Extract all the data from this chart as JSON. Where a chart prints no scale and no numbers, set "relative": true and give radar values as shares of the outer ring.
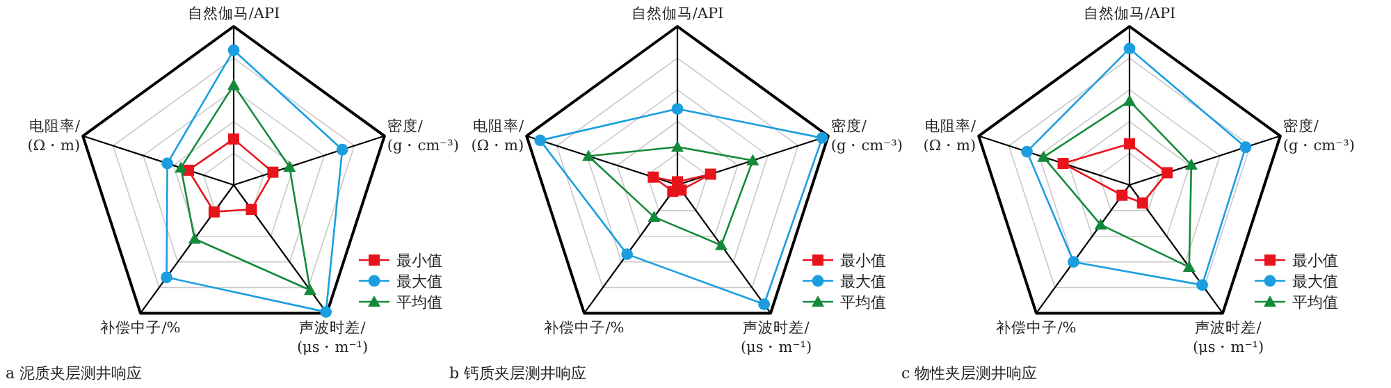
{
  "chart_data": [
    {
      "type": "radar",
      "title": "a 泥质夹层测井响应",
      "relative": true,
      "grid": true,
      "legend": "bottom right",
      "categories": [
        "自然伽马/API",
        "密度/\n(g・cm⁻³)",
        "声波时差/\n(μs・m⁻¹)",
        "补偿中子/%",
        "电阻率/\n(Ω・m)"
      ],
      "series": [
        {
          "name": "最小值",
          "color": "#e8141c",
          "marker": "square",
          "values": [
            0.29,
            0.26,
            0.19,
            0.21,
            0.3
          ]
        },
        {
          "name": "最大值",
          "color": "#1a9ee0",
          "marker": "circle",
          "values": [
            0.85,
            0.72,
            0.99,
            0.72,
            0.44
          ]
        },
        {
          "name": "平均值",
          "color": "#138a3a",
          "marker": "triangle",
          "values": [
            0.63,
            0.37,
            0.82,
            0.42,
            0.35
          ]
        }
      ]
    },
    {
      "type": "radar",
      "title": "b 钙质夹层测井响应",
      "relative": true,
      "grid": true,
      "legend": "bottom right",
      "categories": [
        "自然伽马/API",
        "密度/\n(g・cm⁻³)",
        "声波时差/\n(μs・m⁻¹)",
        "补偿中子/%",
        "电阻率/\n(Ω・m)"
      ],
      "series": [
        {
          "name": "最小值",
          "color": "#e8141c",
          "marker": "square",
          "values": [
            0.02,
            0.22,
            0.04,
            0.05,
            0.16
          ]
        },
        {
          "name": "最大值",
          "color": "#1a9ee0",
          "marker": "circle",
          "values": [
            0.48,
            0.96,
            0.93,
            0.54,
            0.91
          ]
        },
        {
          "name": "平均值",
          "color": "#138a3a",
          "marker": "triangle",
          "values": [
            0.24,
            0.5,
            0.47,
            0.25,
            0.59
          ]
        }
      ]
    },
    {
      "type": "radar",
      "title": "c 物性夹层测井响应",
      "relative": true,
      "grid": true,
      "legend": "bottom right",
      "categories": [
        "自然伽马/API",
        "密度/\n(g・cm⁻³)",
        "声波时差/\n(μs・m⁻¹)",
        "补偿中子/%",
        "电阻率/\n(Ω・m)"
      ],
      "series": [
        {
          "name": "最小值",
          "color": "#e8141c",
          "marker": "square",
          "values": [
            0.26,
            0.25,
            0.14,
            0.08,
            0.44
          ]
        },
        {
          "name": "最大值",
          "color": "#1a9ee0",
          "marker": "circle",
          "values": [
            0.86,
            0.77,
            0.78,
            0.6,
            0.68
          ]
        },
        {
          "name": "平均值",
          "color": "#138a3a",
          "marker": "triangle",
          "values": [
            0.53,
            0.41,
            0.64,
            0.31,
            0.57
          ]
        }
      ]
    }
  ]
}
